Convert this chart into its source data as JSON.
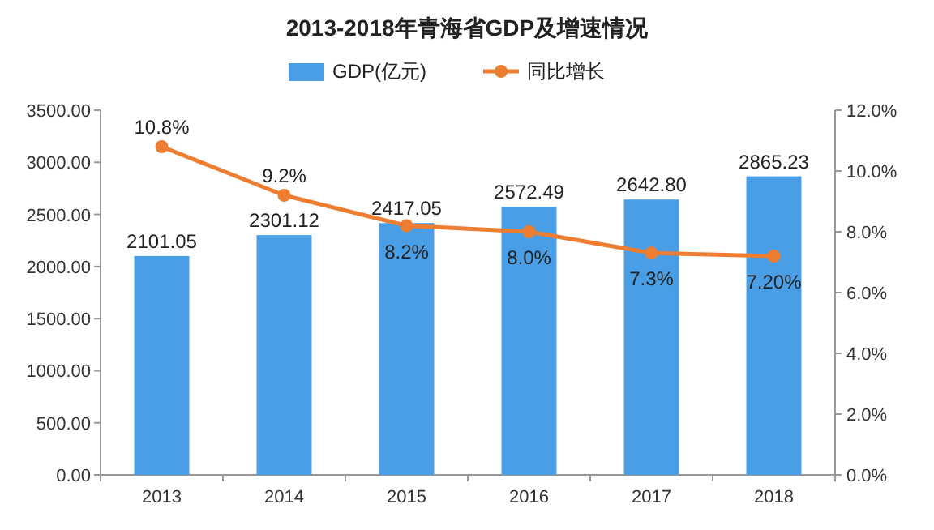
{
  "chart_data": {
    "type": "bar",
    "title": "2013-2018年青海省GDP及增速情况",
    "categories": [
      "2013",
      "2014",
      "2015",
      "2016",
      "2017",
      "2018"
    ],
    "series": [
      {
        "name": "GDP(亿元)",
        "color": "#4a9ee6",
        "values": [
          2101.05,
          2301.12,
          2417.05,
          2572.49,
          2642.8,
          2865.23
        ],
        "value_labels": [
          "2101.05",
          "2301.12",
          "2417.05",
          "2572.49",
          "2642.80",
          "2865.23"
        ]
      },
      {
        "name": "同比增长",
        "type": "line",
        "axis": "y2",
        "color": "#ed7d31",
        "marker": "circle",
        "line_style": "solid",
        "values": [
          10.8,
          9.2,
          8.2,
          8.0,
          7.3,
          7.2
        ],
        "value_labels": [
          "10.8%",
          "9.2%",
          "8.2%",
          "8.0%",
          "7.3%",
          "7.20%"
        ]
      }
    ],
    "ylim": [
      0,
      3500
    ],
    "yticks": [
      {
        "value": 0,
        "label": "0.00"
      },
      {
        "value": 500,
        "label": "500.00"
      },
      {
        "value": 1000,
        "label": "1000.00"
      },
      {
        "value": 1500,
        "label": "1500.00"
      },
      {
        "value": 2000,
        "label": "2000.00"
      },
      {
        "value": 2500,
        "label": "2500.00"
      },
      {
        "value": 3000,
        "label": "3000.00"
      },
      {
        "value": 3500,
        "label": "3500.00"
      }
    ],
    "y2lim": [
      0,
      12
    ],
    "y2ticks": [
      {
        "value": 0,
        "label": "0.0%"
      },
      {
        "value": 2,
        "label": "2.0%"
      },
      {
        "value": 4,
        "label": "4.0%"
      },
      {
        "value": 6,
        "label": "6.0%"
      },
      {
        "value": 8,
        "label": "8.0%"
      },
      {
        "value": 10,
        "label": "10.0%"
      },
      {
        "value": 12,
        "label": "12.0%"
      }
    ],
    "legend": "top"
  }
}
